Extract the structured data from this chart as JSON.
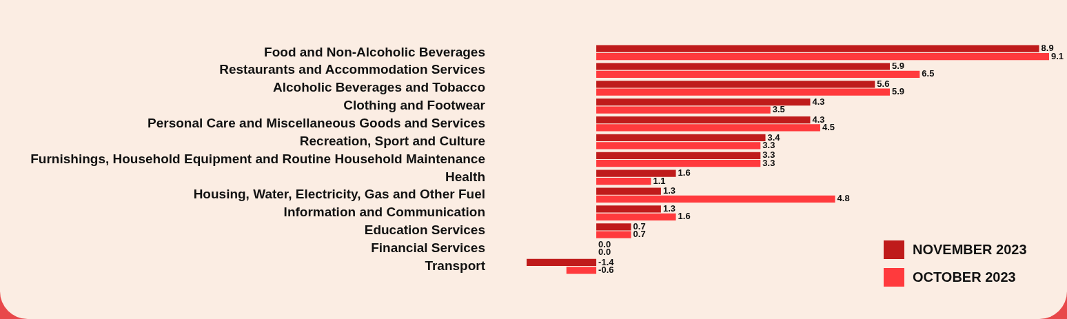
{
  "chart_data": {
    "type": "bar",
    "orientation": "horizontal",
    "categories": [
      "Food and Non-Alcoholic Beverages",
      "Restaurants and Accommodation Services",
      "Alcoholic Beverages and Tobacco",
      "Clothing and Footwear",
      "Personal Care and Miscellaneous Goods and Services",
      "Recreation, Sport and Culture",
      "Furnishings, Household Equipment and Routine Household Maintenance",
      "Health",
      "Housing, Water, Electricity, Gas and Other Fuel",
      "Information and Communication",
      "Education Services",
      "Financial Services",
      "Transport"
    ],
    "series": [
      {
        "name": "NOVEMBER 2023",
        "color": "#bf1b1b",
        "values": [
          8.9,
          5.9,
          5.6,
          4.3,
          4.3,
          3.4,
          3.3,
          1.6,
          1.3,
          1.3,
          0.7,
          0.0,
          -1.4
        ],
        "value_labels": [
          "8.9",
          "5.9",
          "5.6",
          "4.3",
          "4.3",
          "3.4",
          "3.3",
          "1.6",
          "1.3",
          "1.3",
          "0.7",
          "0.0",
          "-1.4"
        ]
      },
      {
        "name": "OCTOBER 2023",
        "color": "#ff3a3d",
        "values": [
          9.1,
          6.5,
          5.9,
          3.5,
          4.5,
          3.3,
          3.3,
          1.1,
          4.8,
          1.6,
          0.7,
          0.0,
          -0.6
        ],
        "value_labels": [
          "9.1",
          "6.5",
          "5.9",
          "3.5",
          "4.5",
          "3.3",
          "3.3",
          "1.1",
          "4.8",
          "1.6",
          "0.7",
          "0.0",
          "-0.6"
        ]
      }
    ],
    "xlim": [
      -1.4,
      9.1
    ],
    "legend": "bottom right",
    "tick_labels": "y"
  }
}
